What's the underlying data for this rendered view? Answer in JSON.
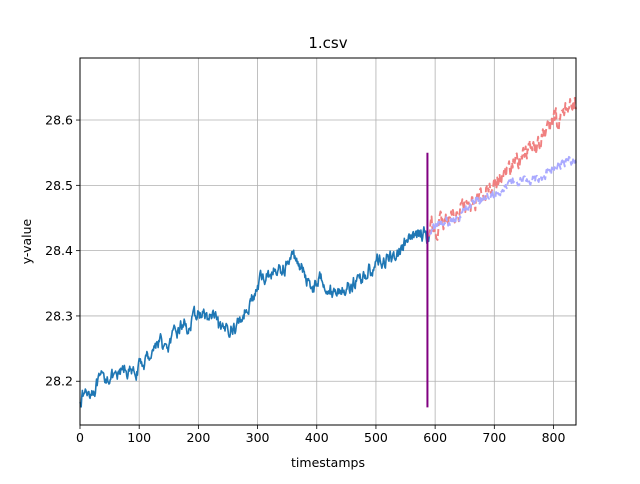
{
  "chart_data": {
    "type": "line",
    "title": "1.csv",
    "xlabel": "timestamps",
    "ylabel": "y-value",
    "xlim": [
      0,
      838
    ],
    "ylim": [
      28.133,
      28.695
    ],
    "grid": true,
    "xticks": [
      0,
      100,
      200,
      300,
      400,
      500,
      600,
      700,
      800
    ],
    "yticks": [
      28.2,
      28.3,
      28.4,
      28.5,
      28.6
    ],
    "xtick_labels": [
      "0",
      "100",
      "200",
      "300",
      "400",
      "500",
      "600",
      "700",
      "800"
    ],
    "ytick_labels": [
      "28.2",
      "28.3",
      "28.4",
      "28.5",
      "28.6"
    ],
    "series": [
      {
        "color": "#1f77b4",
        "style": "solid",
        "x_range": [
          0,
          590
        ],
        "anchors": [
          [
            0,
            28.175
          ],
          [
            10,
            28.182
          ],
          [
            25,
            28.19
          ],
          [
            35,
            28.2
          ],
          [
            50,
            28.21
          ],
          [
            60,
            28.2
          ],
          [
            75,
            28.22
          ],
          [
            90,
            28.21
          ],
          [
            105,
            28.225
          ],
          [
            120,
            28.245
          ],
          [
            135,
            28.265
          ],
          [
            145,
            28.245
          ],
          [
            160,
            28.27
          ],
          [
            175,
            28.29
          ],
          [
            185,
            28.28
          ],
          [
            195,
            28.3
          ],
          [
            205,
            28.305
          ],
          [
            215,
            28.295
          ],
          [
            225,
            28.3
          ],
          [
            240,
            28.27
          ],
          [
            250,
            28.285
          ],
          [
            260,
            28.28
          ],
          [
            275,
            28.3
          ],
          [
            285,
            28.32
          ],
          [
            295,
            28.33
          ],
          [
            305,
            28.355
          ],
          [
            320,
            28.365
          ],
          [
            340,
            28.37
          ],
          [
            360,
            28.39
          ],
          [
            370,
            28.385
          ],
          [
            380,
            28.36
          ],
          [
            395,
            28.345
          ],
          [
            410,
            28.36
          ],
          [
            425,
            28.335
          ],
          [
            440,
            28.34
          ],
          [
            455,
            28.345
          ],
          [
            470,
            28.355
          ],
          [
            490,
            28.37
          ],
          [
            505,
            28.385
          ],
          [
            520,
            28.385
          ],
          [
            535,
            28.395
          ],
          [
            550,
            28.41
          ],
          [
            565,
            28.42
          ],
          [
            575,
            28.43
          ],
          [
            590,
            28.42
          ]
        ],
        "noise": 0.009
      },
      {
        "color": "#f08080",
        "style": "dashed",
        "x_range": [
          590,
          838
        ],
        "anchors": [
          [
            590,
            28.43
          ],
          [
            605,
            28.44
          ],
          [
            615,
            28.44
          ],
          [
            625,
            28.45
          ],
          [
            640,
            28.46
          ],
          [
            655,
            28.47
          ],
          [
            670,
            28.48
          ],
          [
            685,
            28.495
          ],
          [
            700,
            28.505
          ],
          [
            715,
            28.515
          ],
          [
            730,
            28.53
          ],
          [
            745,
            28.545
          ],
          [
            760,
            28.555
          ],
          [
            775,
            28.57
          ],
          [
            790,
            28.585
          ],
          [
            805,
            28.6
          ],
          [
            815,
            28.61
          ],
          [
            825,
            28.625
          ],
          [
            838,
            28.625
          ]
        ],
        "noise": 0.012
      },
      {
        "color": "#aaaaff",
        "style": "dashed",
        "x_range": [
          590,
          838
        ],
        "anchors": [
          [
            590,
            28.43
          ],
          [
            610,
            28.44
          ],
          [
            625,
            28.445
          ],
          [
            640,
            28.455
          ],
          [
            660,
            28.47
          ],
          [
            680,
            28.48
          ],
          [
            700,
            28.49
          ],
          [
            720,
            28.5
          ],
          [
            740,
            28.505
          ],
          [
            760,
            28.51
          ],
          [
            780,
            28.515
          ],
          [
            800,
            28.525
          ],
          [
            820,
            28.535
          ],
          [
            838,
            28.54
          ]
        ],
        "noise": 0.006
      }
    ],
    "vline": {
      "x": 587,
      "ymin": 28.16,
      "ymax": 28.55,
      "color": "#800080"
    }
  }
}
